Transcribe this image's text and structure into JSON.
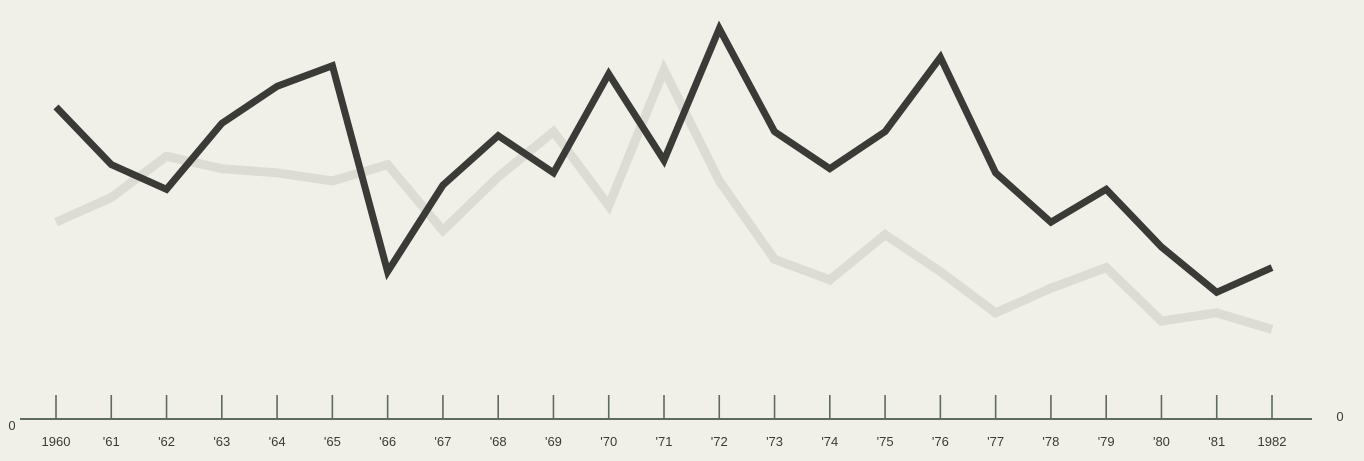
{
  "chart_data": {
    "type": "line",
    "x": [
      "1960",
      "'61",
      "'62",
      "'63",
      "'64",
      "'65",
      "'66",
      "'67",
      "'68",
      "'69",
      "'70",
      "'71",
      "'72",
      "'73",
      "'74",
      "'75",
      "'76",
      "'77",
      "'78",
      "'79",
      "'80",
      "'81",
      "1982"
    ],
    "ylim": [
      0,
      100
    ],
    "grid": false,
    "legend": "none",
    "y_tick_labels": {
      "left": "0",
      "right": "0"
    },
    "series": [
      {
        "color": "#3a3a36",
        "values": [
          76,
          62,
          56,
          72,
          81,
          86,
          36,
          57,
          69,
          60,
          84,
          63,
          95,
          70,
          61,
          70,
          88,
          60,
          48,
          56,
          42,
          31,
          37
        ]
      },
      {
        "color": "#dcdbd4",
        "values": [
          48,
          54,
          64,
          61,
          60,
          58,
          62,
          46,
          59,
          70,
          52,
          85,
          58,
          39,
          34,
          45,
          36,
          26,
          32,
          37,
          24,
          26,
          22
        ]
      }
    ]
  }
}
